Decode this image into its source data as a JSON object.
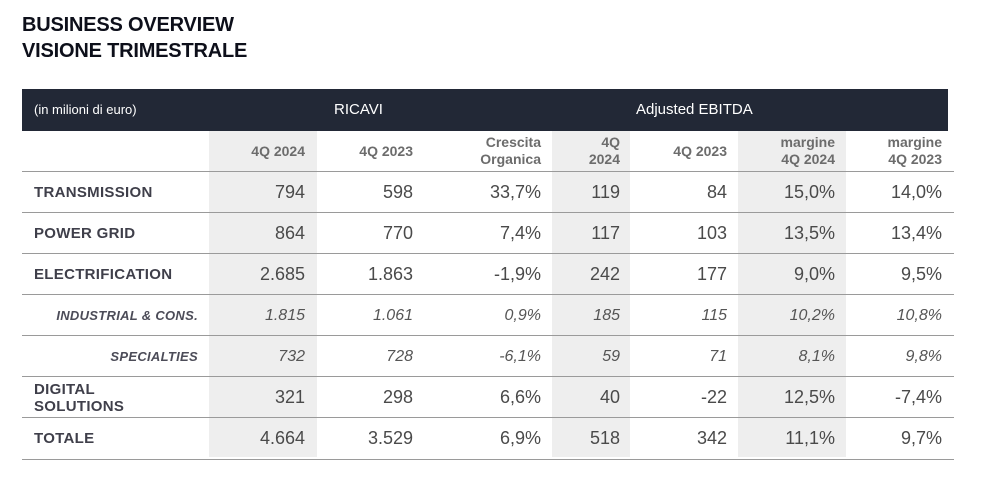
{
  "title": {
    "line1": "BUSINESS OVERVIEW",
    "line2": "VISIONE TRIMESTRALE"
  },
  "header_band": {
    "unit": "(in milioni di euro)",
    "group1": "RICAVI",
    "group2": "Adjusted EBITDA"
  },
  "columns": [
    {
      "line1": "4Q 2024",
      "line2": ""
    },
    {
      "line1": "4Q 2023",
      "line2": ""
    },
    {
      "line1": "Crescita",
      "line2": "Organica"
    },
    {
      "line1": "4Q",
      "line2": "2024"
    },
    {
      "line1": "4Q 2023",
      "line2": ""
    },
    {
      "line1": "margine",
      "line2": "4Q 2024"
    },
    {
      "line1": "margine",
      "line2": "4Q 2023"
    }
  ],
  "rows": [
    {
      "label1": "TRANSMISSION",
      "label2": "",
      "sub": false,
      "values": [
        "794",
        "598",
        "33,7%",
        "119",
        "84",
        "15,0%",
        "14,0%"
      ]
    },
    {
      "label1": "POWER GRID",
      "label2": "",
      "sub": false,
      "values": [
        "864",
        "770",
        "7,4%",
        "117",
        "103",
        "13,5%",
        "13,4%"
      ]
    },
    {
      "label1": "ELECTRIFICATION",
      "label2": "",
      "sub": false,
      "values": [
        "2.685",
        "1.863",
        "-1,9%",
        "242",
        "177",
        "9,0%",
        "9,5%"
      ]
    },
    {
      "label1": "INDUSTRIAL & CONS.",
      "label2": "",
      "sub": true,
      "values": [
        "1.815",
        "1.061",
        "0,9%",
        "185",
        "115",
        "10,2%",
        "10,8%"
      ]
    },
    {
      "label1": "SPECIALTIES",
      "label2": "",
      "sub": true,
      "values": [
        "732",
        "728",
        "-6,1%",
        "59",
        "71",
        "8,1%",
        "9,8%"
      ]
    },
    {
      "label1": "DIGITAL",
      "label2": "SOLUTIONS",
      "sub": false,
      "values": [
        "321",
        "298",
        "6,6%",
        "40",
        "-22",
        "12,5%",
        "-7,4%"
      ]
    },
    {
      "label1": "TOTALE",
      "label2": "",
      "sub": false,
      "values": [
        "4.664",
        "3.529",
        "6,9%",
        "518",
        "342",
        "11,1%",
        "9,7%"
      ]
    }
  ],
  "colors": {
    "band_bg": "#222836",
    "shaded_col": "#eeeeee",
    "rule": "#9a9a9a"
  }
}
